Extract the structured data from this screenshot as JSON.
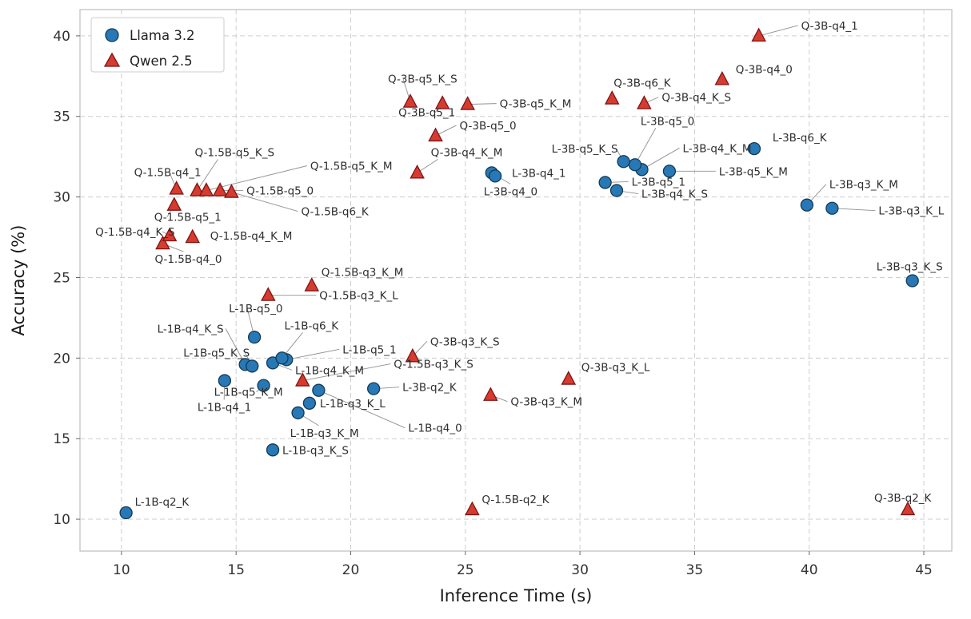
{
  "chart_data": {
    "type": "scatter",
    "title": "",
    "xlabel": "Inference Time (s)",
    "ylabel": "Accuracy (%)",
    "xlim": [
      8.19,
      46.22
    ],
    "ylim": [
      8.02,
      41.63
    ],
    "xticks": [
      10,
      15,
      20,
      25,
      30,
      35,
      40,
      45
    ],
    "yticks": [
      10,
      15,
      20,
      25,
      30,
      35,
      40
    ],
    "grid": "dashed",
    "legend": {
      "position": "upper-left",
      "entries": [
        {
          "label": "Llama 3.2",
          "marker": "circle",
          "color": "#2878b5"
        },
        {
          "label": "Qwen 2.5",
          "marker": "triangle",
          "color": "#d63b30"
        }
      ]
    },
    "series": [
      {
        "name": "Llama 3.2",
        "marker": "circle",
        "color": "#2878b5",
        "edge": "#123a57",
        "points": [
          {
            "label": "L-1B-q2_K",
            "x": 10.2,
            "y": 10.4,
            "dx": 11,
            "dy": -9,
            "anchor": "start",
            "leader": false
          },
          {
            "label": "L-1B-q3_K_S",
            "x": 16.6,
            "y": 14.3,
            "dx": 12,
            "dy": 5,
            "anchor": "start",
            "leader": false
          },
          {
            "label": "L-1B-q3_K_M",
            "x": 17.7,
            "y": 16.6,
            "dx": -10,
            "dy": 30,
            "anchor": "start",
            "leader": true
          },
          {
            "label": "L-1B-q3_K_L",
            "x": 18.2,
            "y": 17.2,
            "dx": 13,
            "dy": 5,
            "anchor": "start",
            "leader": false
          },
          {
            "label": "L-1B-q4_0",
            "x": 18.6,
            "y": 18.0,
            "dx": 112,
            "dy": 52,
            "anchor": "start",
            "leader": true
          },
          {
            "label": "L-1B-q4_1",
            "x": 14.5,
            "y": 18.6,
            "dx": -34,
            "dy": 38,
            "anchor": "start",
            "leader": true
          },
          {
            "label": "L-1B-q4_K_S",
            "x": 15.4,
            "y": 19.6,
            "dx": -110,
            "dy": -40,
            "anchor": "start",
            "leader": true
          },
          {
            "label": "L-1B-q4_K_M",
            "x": 16.6,
            "y": 19.7,
            "dx": 28,
            "dy": 14,
            "anchor": "start",
            "leader": true
          },
          {
            "label": "L-1B-q5_0",
            "x": 15.8,
            "y": 21.3,
            "dx": -32,
            "dy": -31,
            "anchor": "start",
            "leader": true
          },
          {
            "label": "L-1B-q5_1",
            "x": 17.2,
            "y": 19.9,
            "dx": 70,
            "dy": -8,
            "anchor": "start",
            "leader": true
          },
          {
            "label": "L-1B-q5_K_S",
            "x": 15.7,
            "y": 19.5,
            "dx": -86,
            "dy": -12,
            "anchor": "start",
            "leader": true
          },
          {
            "label": "L-1B-q5_K_M",
            "x": 16.2,
            "y": 18.3,
            "dx": -62,
            "dy": 13,
            "anchor": "start",
            "leader": true
          },
          {
            "label": "L-1B-q6_K",
            "x": 17.0,
            "y": 20.0,
            "dx": 3,
            "dy": -36,
            "anchor": "start",
            "leader": true
          },
          {
            "label": "L-3B-q2_K",
            "x": 21.0,
            "y": 18.1,
            "dx": 36,
            "dy": 3,
            "anchor": "start",
            "leader": true
          },
          {
            "label": "L-3B-q3_K_S",
            "x": 44.5,
            "y": 24.8,
            "dx": -45,
            "dy": -13,
            "anchor": "start",
            "leader": false
          },
          {
            "label": "L-3B-q3_K_M",
            "x": 39.9,
            "y": 29.5,
            "dx": 28,
            "dy": -21,
            "anchor": "start",
            "leader": true
          },
          {
            "label": "L-3B-q3_K_L",
            "x": 41.0,
            "y": 29.3,
            "dx": 58,
            "dy": 8,
            "anchor": "start",
            "leader": true
          },
          {
            "label": "L-3B-q4_0",
            "x": 26.15,
            "y": 31.5,
            "dx": -10,
            "dy": 28,
            "anchor": "start",
            "leader": true
          },
          {
            "label": "L-3B-q4_1",
            "x": 26.3,
            "y": 31.3,
            "dx": 21,
            "dy": 1,
            "anchor": "start",
            "leader": false
          },
          {
            "label": "L-3B-q4_K_S",
            "x": 31.6,
            "y": 30.4,
            "dx": 31,
            "dy": 9,
            "anchor": "start",
            "leader": true
          },
          {
            "label": "L-3B-q4_K_M",
            "x": 32.7,
            "y": 31.7,
            "dx": 51,
            "dy": -22,
            "anchor": "start",
            "leader": true
          },
          {
            "label": "L-3B-q5_0",
            "x": 32.4,
            "y": 32.0,
            "dx": 7,
            "dy": -50,
            "anchor": "start",
            "leader": true
          },
          {
            "label": "L-3B-q5_1",
            "x": 31.1,
            "y": 30.9,
            "dx": 33,
            "dy": 4,
            "anchor": "start",
            "leader": true
          },
          {
            "label": "L-3B-q5_K_S",
            "x": 31.9,
            "y": 32.2,
            "dx": -90,
            "dy": -11,
            "anchor": "start",
            "leader": true
          },
          {
            "label": "L-3B-q5_K_M",
            "x": 33.9,
            "y": 31.6,
            "dx": 62,
            "dy": 5,
            "anchor": "start",
            "leader": true
          },
          {
            "label": "L-3B-q6_K",
            "x": 37.6,
            "y": 33.0,
            "dx": 23,
            "dy": -9,
            "anchor": "start",
            "leader": false
          }
        ]
      },
      {
        "name": "Qwen 2.5",
        "marker": "triangle",
        "color": "#d63b30",
        "edge": "#7e1414",
        "points": [
          {
            "label": "Q-1.5B-q2_K",
            "x": 25.3,
            "y": 10.6,
            "dx": 12,
            "dy": -8,
            "anchor": "start",
            "leader": false
          },
          {
            "label": "Q-1.5B-q3_K_S",
            "x": 17.9,
            "y": 18.6,
            "dx": 114,
            "dy": -16,
            "anchor": "start",
            "leader": true
          },
          {
            "label": "Q-1.5B-q3_K_M",
            "x": 18.3,
            "y": 24.5,
            "dx": 12,
            "dy": -12,
            "anchor": "start",
            "leader": false
          },
          {
            "label": "Q-1.5B-q3_K_L",
            "x": 16.4,
            "y": 23.9,
            "dx": 64,
            "dy": 5,
            "anchor": "start",
            "leader": true
          },
          {
            "label": "Q-1.5B-q4_0",
            "x": 11.8,
            "y": 27.1,
            "dx": -10,
            "dy": 24,
            "anchor": "start",
            "leader": true
          },
          {
            "label": "Q-1.5B-q4_1",
            "x": 12.4,
            "y": 30.5,
            "dx": -53,
            "dy": -16,
            "anchor": "start",
            "leader": true
          },
          {
            "label": "Q-1.5B-q4_K_S",
            "x": 12.1,
            "y": 27.6,
            "dx": -93,
            "dy": 0,
            "anchor": "start",
            "leader": true
          },
          {
            "label": "Q-1.5B-q4_K_M",
            "x": 13.1,
            "y": 27.5,
            "dx": 22,
            "dy": 3,
            "anchor": "start",
            "leader": false
          },
          {
            "label": "Q-1.5B-q5_0",
            "x": 14.3,
            "y": 30.4,
            "dx": 33,
            "dy": 5,
            "anchor": "start",
            "leader": true
          },
          {
            "label": "Q-1.5B-q5_1",
            "x": 12.3,
            "y": 29.5,
            "dx": -25,
            "dy": 20,
            "anchor": "start",
            "leader": true
          },
          {
            "label": "Q-1.5B-q5_K_S",
            "x": 13.3,
            "y": 30.4,
            "dx": -3,
            "dy": -43,
            "anchor": "start",
            "leader": true
          },
          {
            "label": "Q-1.5B-q5_K_M",
            "x": 13.7,
            "y": 30.4,
            "dx": 130,
            "dy": -26,
            "anchor": "start",
            "leader": true
          },
          {
            "label": "Q-1.5B-q6_K",
            "x": 14.8,
            "y": 30.3,
            "dx": 87,
            "dy": 29,
            "anchor": "start",
            "leader": true
          },
          {
            "label": "Q-3B-q2_K",
            "x": 44.3,
            "y": 10.6,
            "dx": -42,
            "dy": -10,
            "anchor": "start",
            "leader": false
          },
          {
            "label": "Q-3B-q3_K_S",
            "x": 22.7,
            "y": 20.1,
            "dx": 22,
            "dy": -14,
            "anchor": "start",
            "leader": true
          },
          {
            "label": "Q-3B-q3_K_M",
            "x": 26.1,
            "y": 17.7,
            "dx": 25,
            "dy": 13,
            "anchor": "start",
            "leader": true
          },
          {
            "label": "Q-3B-q3_K_L",
            "x": 29.5,
            "y": 18.7,
            "dx": 16,
            "dy": -10,
            "anchor": "start",
            "leader": false
          },
          {
            "label": "Q-3B-q4_0",
            "x": 36.2,
            "y": 37.3,
            "dx": 17,
            "dy": -8,
            "anchor": "start",
            "leader": false
          },
          {
            "label": "Q-3B-q4_1",
            "x": 37.8,
            "y": 40.0,
            "dx": 53,
            "dy": -8,
            "anchor": "start",
            "leader": true
          },
          {
            "label": "Q-3B-q4_K_S",
            "x": 32.8,
            "y": 35.8,
            "dx": 22,
            "dy": -3,
            "anchor": "start",
            "leader": true
          },
          {
            "label": "Q-3B-q4_K_M",
            "x": 22.9,
            "y": 31.5,
            "dx": 17,
            "dy": -21,
            "anchor": "start",
            "leader": true
          },
          {
            "label": "Q-3B-q5_0",
            "x": 23.7,
            "y": 33.8,
            "dx": 30,
            "dy": -8,
            "anchor": "start",
            "leader": true
          },
          {
            "label": "Q-3B-q5_1",
            "x": 24.0,
            "y": 35.8,
            "dx": -55,
            "dy": 16,
            "anchor": "start",
            "leader": true
          },
          {
            "label": "Q-3B-q5_K_S",
            "x": 22.6,
            "y": 35.9,
            "dx": -28,
            "dy": -24,
            "anchor": "start",
            "leader": true
          },
          {
            "label": "Q-3B-q5_K_M",
            "x": 25.1,
            "y": 35.75,
            "dx": 40,
            "dy": 4,
            "anchor": "start",
            "leader": true
          },
          {
            "label": "Q-3B-q6_K",
            "x": 31.4,
            "y": 36.1,
            "dx": 2,
            "dy": -15,
            "anchor": "start",
            "leader": false
          }
        ]
      }
    ]
  }
}
